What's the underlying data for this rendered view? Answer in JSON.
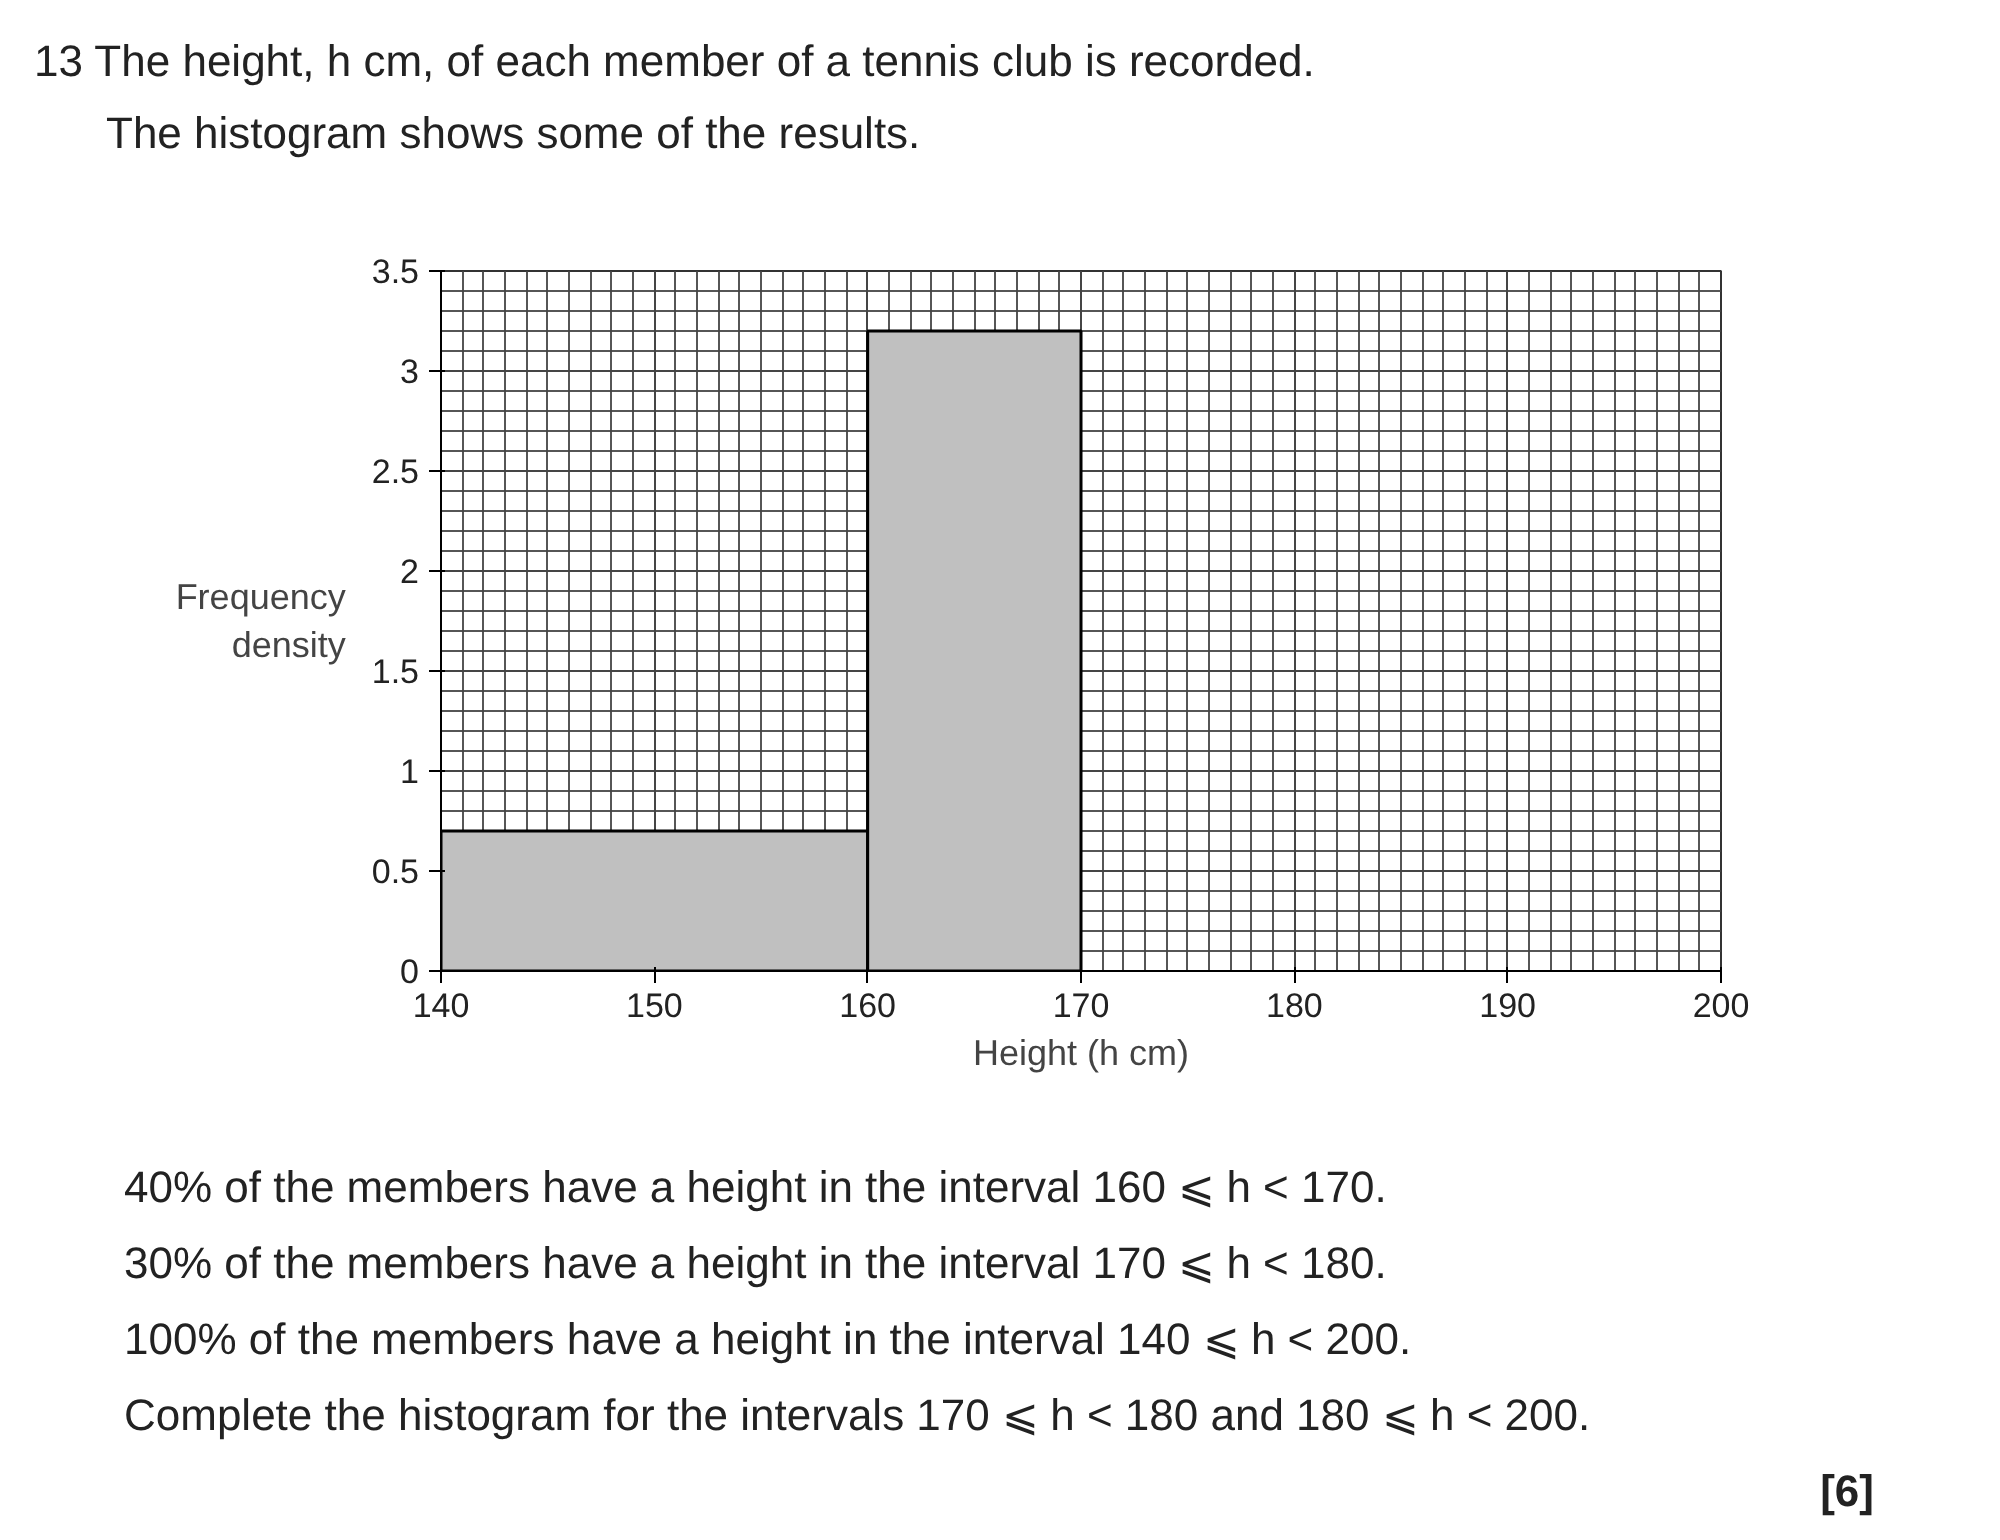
{
  "chart_data": {
    "type": "histogram",
    "title": "13  The height, h cm, of each member of a tennis club is recorded.",
    "subtitle": "The histogram shows some of the results.",
    "xlabel": "Height (h cm)",
    "ylabel": "Frequency density",
    "bins": [
      140,
      160,
      170
    ],
    "values": [
      0.7,
      3.2
    ],
    "color": "#c0c0c0",
    "xlim": [
      140,
      200
    ],
    "xticks": [
      140,
      150,
      160,
      170,
      180,
      190,
      200
    ],
    "ylim": [
      0,
      3.5
    ],
    "yticks": [
      0,
      0.5,
      1,
      1.5,
      2,
      2.5,
      3,
      3.5
    ],
    "grid": true,
    "annotations": [
      "40% of the members have a height in the interval 160 ⩽ h < 170.",
      "30% of the members have a height in the interval 170 ⩽ h < 180.",
      "100% of the members have a height in the interval 140 ⩽ h < 200.",
      "Complete the histogram for the intervals 170 ⩽ h < 180 and 180 ⩽ h < 200.",
      "[6]"
    ]
  }
}
